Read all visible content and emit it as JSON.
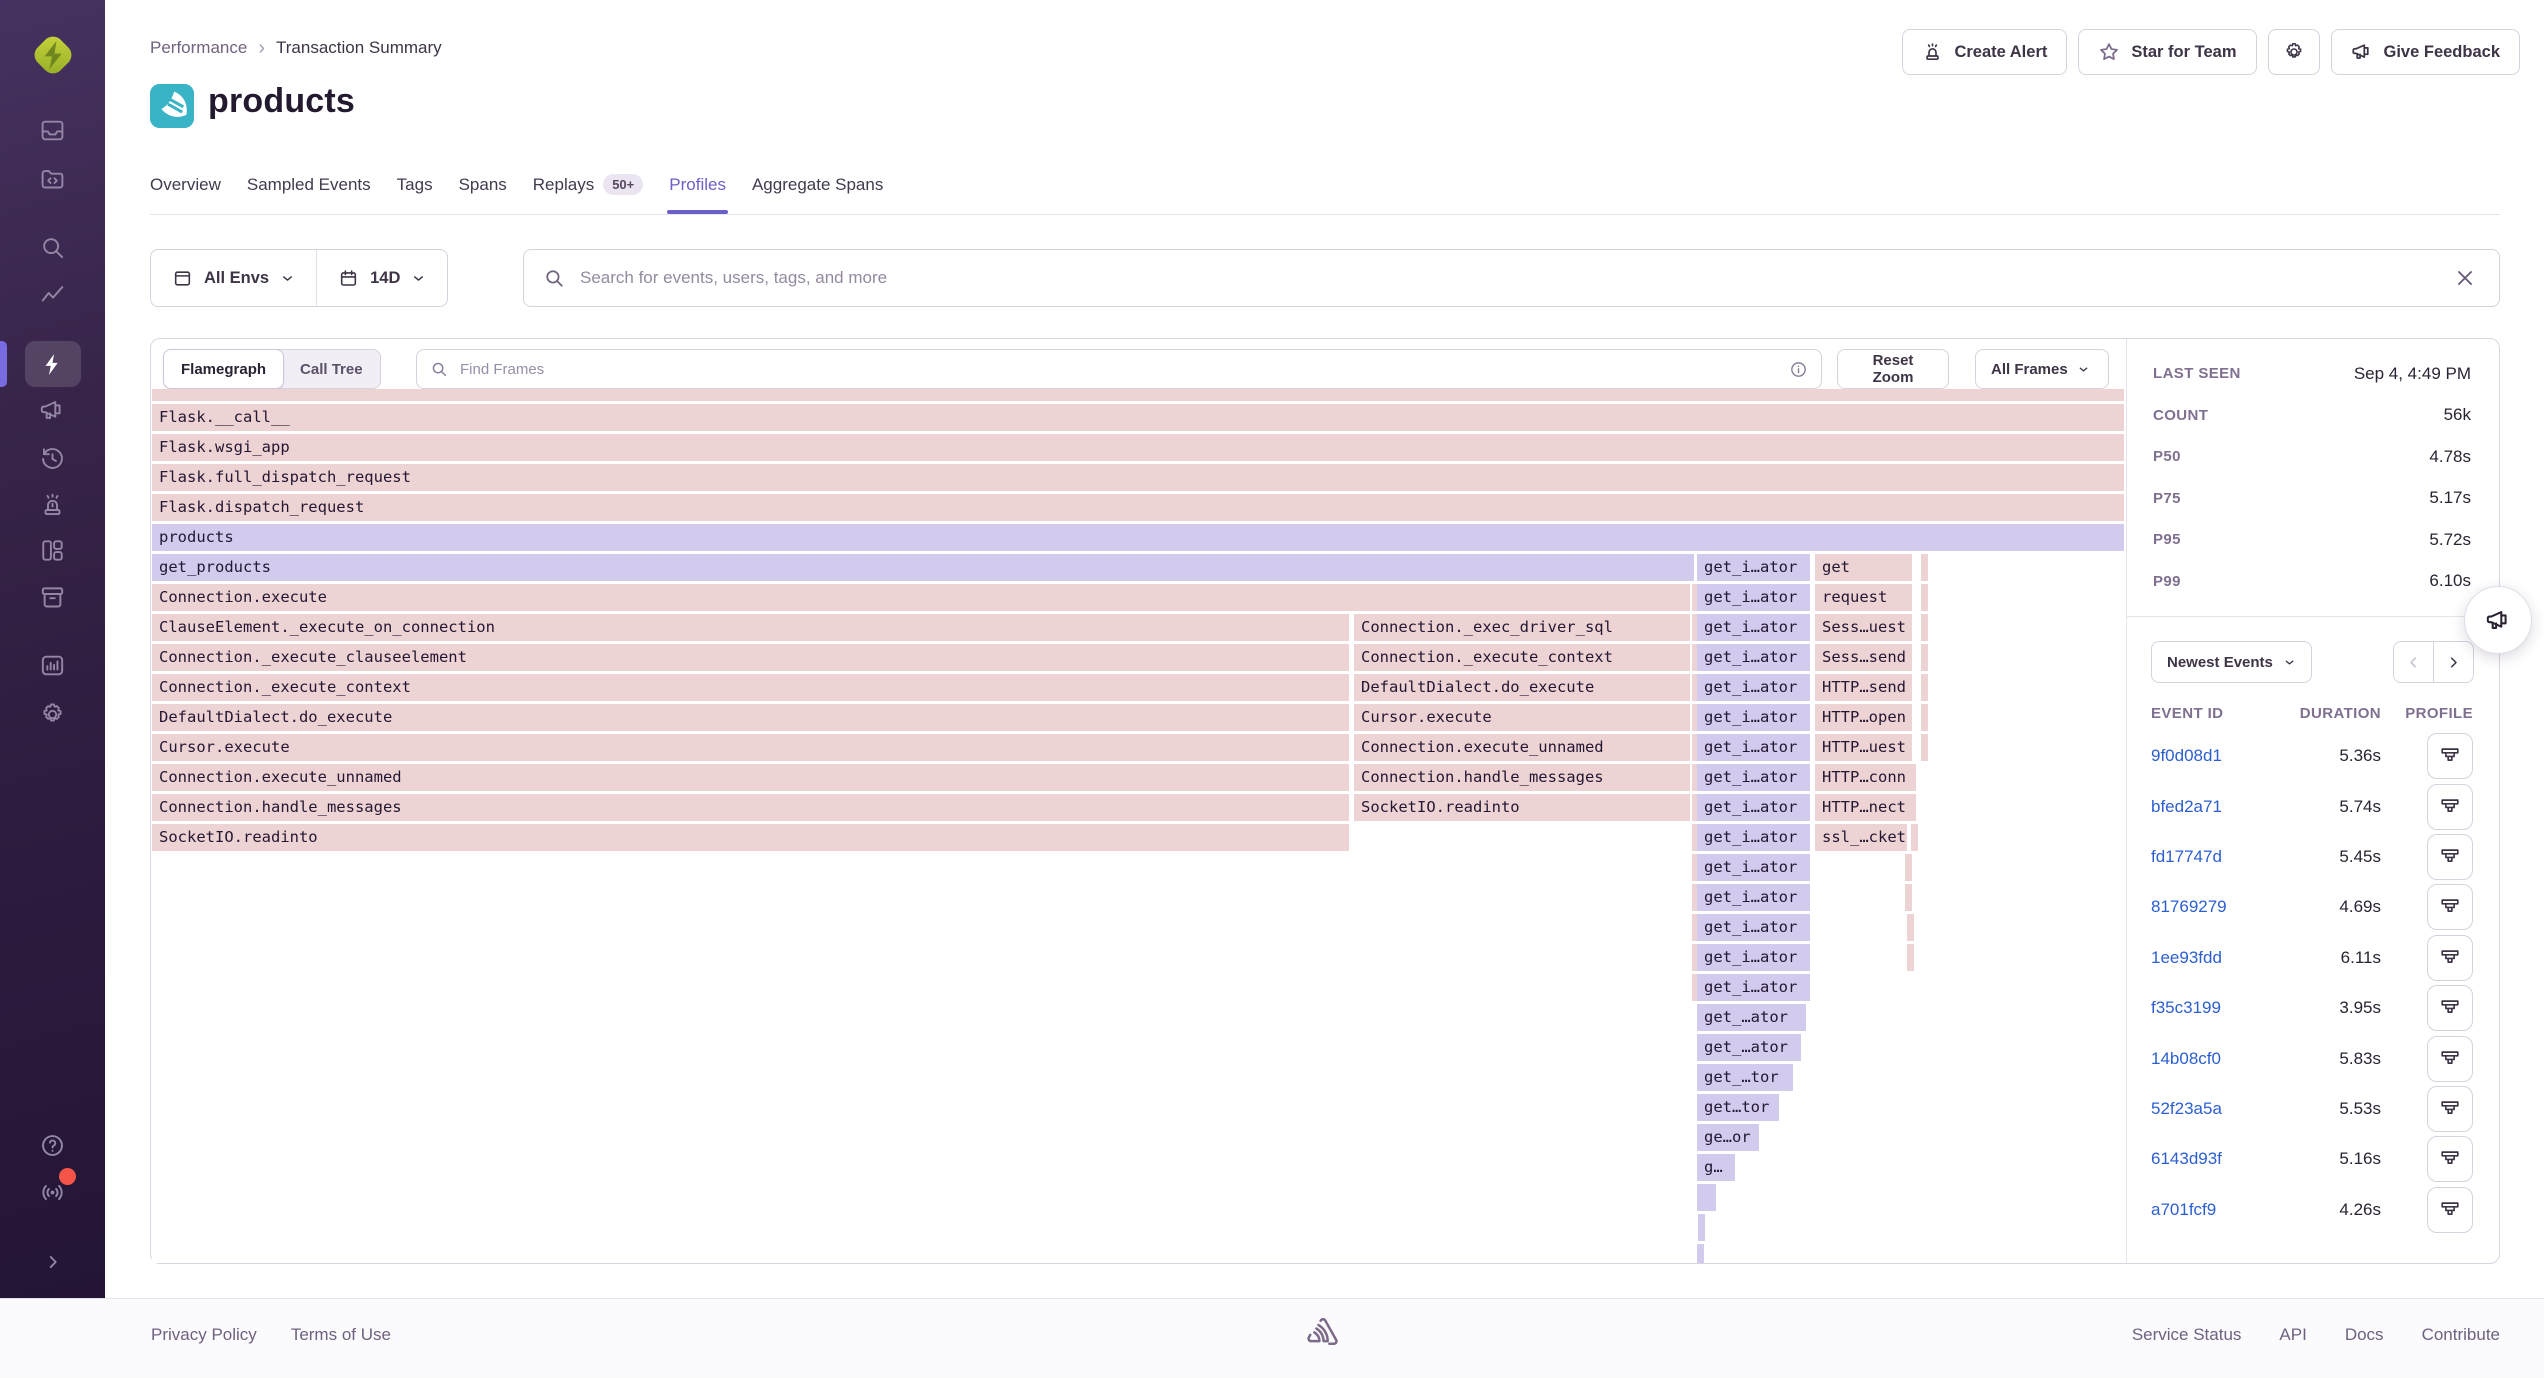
{
  "breadcrumb": {
    "items": [
      "Performance",
      "Transaction Summary"
    ]
  },
  "page": {
    "title": "products",
    "platform_icon": "flask-icon"
  },
  "header_buttons": {
    "create_alert": "Create Alert",
    "star_for_team": "Star for Team",
    "give_feedback": "Give Feedback"
  },
  "tabs": [
    {
      "label": "Overview"
    },
    {
      "label": "Sampled Events"
    },
    {
      "label": "Tags"
    },
    {
      "label": "Spans"
    },
    {
      "label": "Replays",
      "badge": "50+"
    },
    {
      "label": "Profiles",
      "active": true
    },
    {
      "label": "Aggregate Spans"
    }
  ],
  "filters": {
    "environment": "All Envs",
    "date_range": "14D",
    "search_placeholder": "Search for events, users, tags, and more"
  },
  "flamegraph": {
    "view_toggle": {
      "options": [
        "Flamegraph",
        "Call Tree"
      ],
      "selected": "Flamegraph"
    },
    "find_placeholder": "Find Frames",
    "reset_zoom_label": "Reset Zoom",
    "frame_filter_label": "All Frames",
    "colors": {
      "frame_system": "#eed3d5",
      "frame_application": "#d2cbee"
    },
    "frames": [
      [
        0,
        0,
        1972,
        "p",
        ""
      ],
      [
        1,
        0,
        1972,
        "p",
        "Flask.__call__"
      ],
      [
        2,
        0,
        1972,
        "p",
        "Flask.wsgi_app"
      ],
      [
        3,
        0,
        1972,
        "p",
        "Flask.full_dispatch_request"
      ],
      [
        4,
        0,
        1972,
        "p",
        "Flask.dispatch_request"
      ],
      [
        5,
        0,
        1972,
        "v",
        "products"
      ],
      [
        6,
        0,
        1542,
        "v",
        "get_products"
      ],
      [
        6,
        1545,
        113,
        "v",
        "get_i…ator"
      ],
      [
        6,
        1663,
        97,
        "p",
        "get"
      ],
      [
        6,
        1769,
        3,
        "p",
        ""
      ],
      [
        7,
        0,
        1538,
        "p",
        "Connection.execute"
      ],
      [
        7,
        1540,
        3,
        "p",
        ""
      ],
      [
        7,
        1545,
        113,
        "v",
        "get_i…ator"
      ],
      [
        7,
        1663,
        97,
        "p",
        "request"
      ],
      [
        7,
        1769,
        3,
        "p",
        ""
      ],
      [
        8,
        0,
        1197,
        "p",
        "ClauseElement._execute_on_connection"
      ],
      [
        8,
        1202,
        336,
        "p",
        "Connection._exec_driver_sql"
      ],
      [
        8,
        1540,
        3,
        "p",
        ""
      ],
      [
        8,
        1545,
        113,
        "v",
        "get_i…ator"
      ],
      [
        8,
        1663,
        97,
        "p",
        "Sess…uest"
      ],
      [
        8,
        1769,
        3,
        "p",
        ""
      ],
      [
        9,
        0,
        1197,
        "p",
        "Connection._execute_clauseelement"
      ],
      [
        9,
        1202,
        336,
        "p",
        "Connection._execute_context"
      ],
      [
        9,
        1540,
        3,
        "p",
        ""
      ],
      [
        9,
        1545,
        113,
        "v",
        "get_i…ator"
      ],
      [
        9,
        1663,
        97,
        "p",
        "Sess…send"
      ],
      [
        9,
        1769,
        3,
        "p",
        ""
      ],
      [
        10,
        0,
        1197,
        "p",
        "Connection._execute_context"
      ],
      [
        10,
        1202,
        336,
        "p",
        "DefaultDialect.do_execute"
      ],
      [
        10,
        1540,
        3,
        "p",
        ""
      ],
      [
        10,
        1545,
        113,
        "v",
        "get_i…ator"
      ],
      [
        10,
        1663,
        97,
        "p",
        "HTTP…send"
      ],
      [
        10,
        1769,
        3,
        "p",
        ""
      ],
      [
        11,
        0,
        1197,
        "p",
        "DefaultDialect.do_execute"
      ],
      [
        11,
        1202,
        336,
        "p",
        "Cursor.execute"
      ],
      [
        11,
        1540,
        3,
        "p",
        ""
      ],
      [
        11,
        1545,
        113,
        "v",
        "get_i…ator"
      ],
      [
        11,
        1663,
        97,
        "p",
        "HTTP…open"
      ],
      [
        11,
        1769,
        3,
        "p",
        ""
      ],
      [
        12,
        0,
        1197,
        "p",
        "Cursor.execute"
      ],
      [
        12,
        1202,
        336,
        "p",
        "Connection.execute_unnamed"
      ],
      [
        12,
        1540,
        3,
        "p",
        ""
      ],
      [
        12,
        1545,
        113,
        "v",
        "get_i…ator"
      ],
      [
        12,
        1663,
        97,
        "p",
        "HTTP…uest"
      ],
      [
        12,
        1769,
        3,
        "p",
        ""
      ],
      [
        13,
        0,
        1197,
        "p",
        "Connection.execute_unnamed"
      ],
      [
        13,
        1202,
        336,
        "p",
        "Connection.handle_messages"
      ],
      [
        13,
        1540,
        3,
        "p",
        ""
      ],
      [
        13,
        1545,
        113,
        "v",
        "get_i…ator"
      ],
      [
        13,
        1663,
        97,
        "p",
        "HTTP…conn"
      ],
      [
        13,
        1757,
        5,
        "p",
        ""
      ],
      [
        14,
        0,
        1197,
        "p",
        "Connection.handle_messages"
      ],
      [
        14,
        1202,
        336,
        "p",
        "SocketIO.readinto"
      ],
      [
        14,
        1540,
        3,
        "p",
        ""
      ],
      [
        14,
        1545,
        113,
        "v",
        "get_i…ator"
      ],
      [
        14,
        1663,
        97,
        "p",
        "HTTP…nect"
      ],
      [
        14,
        1757,
        5,
        "p",
        ""
      ],
      [
        15,
        0,
        1197,
        "p",
        "SocketIO.readinto"
      ],
      [
        15,
        1540,
        3,
        "p",
        ""
      ],
      [
        15,
        1545,
        113,
        "v",
        "get_i…ator"
      ],
      [
        15,
        1663,
        92,
        "p",
        "ssl_…cket"
      ],
      [
        15,
        1759,
        6,
        "p",
        ""
      ],
      [
        16,
        1540,
        3,
        "p",
        ""
      ],
      [
        16,
        1545,
        113,
        "v",
        "get_i…ator"
      ],
      [
        16,
        1753,
        7,
        "p",
        ""
      ],
      [
        17,
        1540,
        3,
        "p",
        ""
      ],
      [
        17,
        1545,
        113,
        "v",
        "get_i…ator"
      ],
      [
        17,
        1753,
        7,
        "p",
        ""
      ],
      [
        18,
        1540,
        3,
        "p",
        ""
      ],
      [
        18,
        1545,
        113,
        "v",
        "get_i…ator"
      ],
      [
        18,
        1755,
        2,
        "p",
        ""
      ],
      [
        19,
        1540,
        3,
        "p",
        ""
      ],
      [
        19,
        1545,
        113,
        "v",
        "get_i…ator"
      ],
      [
        19,
        1755,
        2,
        "p",
        ""
      ],
      [
        20,
        1540,
        3,
        "p",
        ""
      ],
      [
        20,
        1545,
        113,
        "v",
        "get_i…ator"
      ],
      [
        21,
        1545,
        109,
        "v",
        "get_…ator"
      ],
      [
        22,
        1545,
        104,
        "v",
        "get_…ator"
      ],
      [
        23,
        1545,
        96,
        "v",
        "get_…tor"
      ],
      [
        24,
        1545,
        82,
        "v",
        "get…tor"
      ],
      [
        25,
        1545,
        62,
        "v",
        "ge…or"
      ],
      [
        26,
        1545,
        38,
        "v",
        "g…"
      ],
      [
        27,
        1545,
        19,
        "v",
        ""
      ],
      [
        28,
        1546,
        6,
        "v",
        ""
      ],
      [
        29,
        1545,
        2,
        "v",
        ""
      ]
    ]
  },
  "stats": {
    "rows": [
      {
        "label": "LAST SEEN",
        "value": "Sep 4, 4:49 PM"
      },
      {
        "label": "COUNT",
        "value": "56k"
      },
      {
        "label": "P50",
        "value": "4.78s"
      },
      {
        "label": "P75",
        "value": "5.17s"
      },
      {
        "label": "P95",
        "value": "5.72s"
      },
      {
        "label": "P99",
        "value": "6.10s"
      }
    ]
  },
  "events": {
    "sort": "Newest Events",
    "columns": [
      "EVENT ID",
      "DURATION",
      "PROFILE"
    ],
    "rows": [
      {
        "id": "9f0d08d1",
        "duration": "5.36s"
      },
      {
        "id": "bfed2a71",
        "duration": "5.74s"
      },
      {
        "id": "fd17747d",
        "duration": "5.45s"
      },
      {
        "id": "81769279",
        "duration": "4.69s"
      },
      {
        "id": "1ee93fdd",
        "duration": "6.11s"
      },
      {
        "id": "f35c3199",
        "duration": "3.95s"
      },
      {
        "id": "14b08cf0",
        "duration": "5.83s"
      },
      {
        "id": "52f23a5a",
        "duration": "5.53s"
      },
      {
        "id": "6143d93f",
        "duration": "5.16s"
      },
      {
        "id": "a701fcf9",
        "duration": "4.26s"
      }
    ]
  },
  "sidebar_icons": [
    "sentry-logo",
    "issues-icon",
    "projects-icon",
    "search-icon",
    "stats-icon",
    "performance-icon",
    "releases-icon",
    "replays-icon",
    "alerts-icon",
    "dashboards-icon",
    "discover-icon",
    "monitors-icon",
    "settings-icon",
    "help-icon",
    "broadcast-icon",
    "collapse-icon"
  ],
  "footer": {
    "left": [
      "Privacy Policy",
      "Terms of Use"
    ],
    "right": [
      "Service Status",
      "API",
      "Docs",
      "Contribute"
    ]
  }
}
